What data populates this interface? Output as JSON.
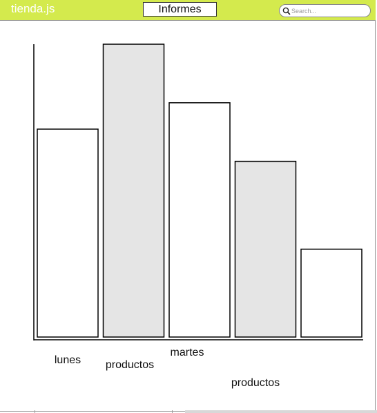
{
  "app": {
    "title": "tienda.js"
  },
  "header": {
    "tab_label": "Informes"
  },
  "search": {
    "placeholder": "Search..."
  },
  "chart_data": {
    "type": "bar",
    "categories": [
      "lunes",
      "productos",
      "martes",
      "productos",
      ""
    ],
    "values": [
      71,
      100,
      80,
      60,
      30
    ],
    "title": "",
    "xlabel": "",
    "ylabel": "",
    "ylim": [
      0,
      100
    ],
    "grid": false,
    "colors": [
      "#ffffff",
      "#e5e5e5",
      "#ffffff",
      "#e5e5e5",
      "#ffffff"
    ],
    "stroke": "#000000"
  }
}
